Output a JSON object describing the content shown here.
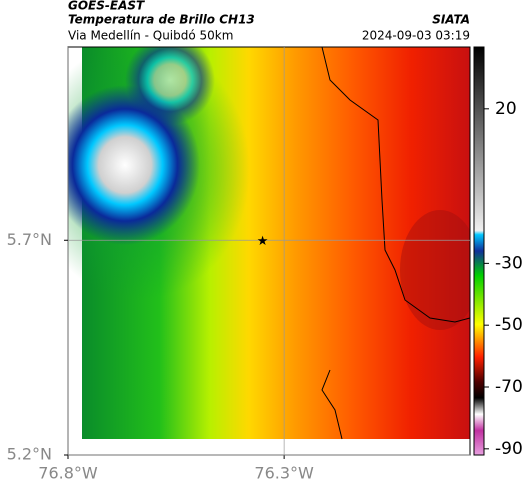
{
  "header": {
    "product": "GOES-EAST",
    "title": "Temperatura de Brillo CH13",
    "source": "SIATA",
    "subtitle": "Via Medellín - Quibdó 50km",
    "timestamp": "2024-09-03 03:19"
  },
  "map": {
    "xlim": [
      -76.8,
      -75.87
    ],
    "ylim": [
      5.2,
      6.15
    ],
    "xticks": [
      {
        "value": -76.8,
        "label": "76.8°W"
      },
      {
        "value": -76.3,
        "label": "76.3°W"
      }
    ],
    "yticks": [
      {
        "value": 5.2,
        "label": "5.2°N"
      },
      {
        "value": 5.7,
        "label": "5.7°N"
      }
    ],
    "grid": true,
    "marker": {
      "lon": -76.35,
      "lat": 5.7
    }
  },
  "colorbar": {
    "clim": [
      -92,
      40
    ],
    "ticks": [
      20,
      -30,
      -50,
      -70,
      -90
    ]
  }
}
